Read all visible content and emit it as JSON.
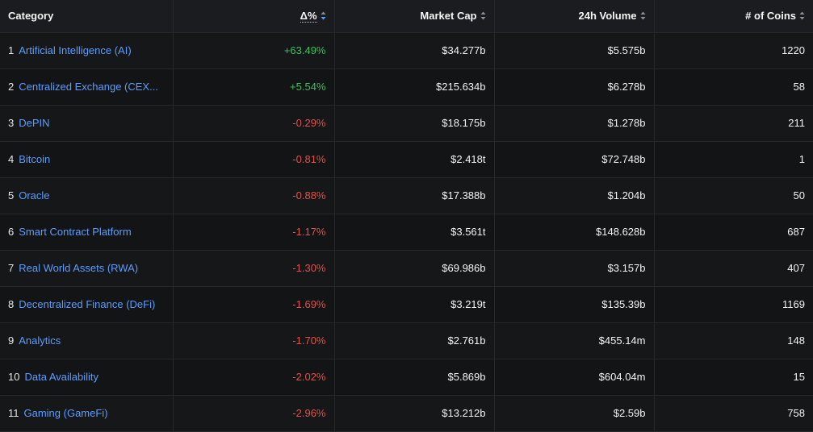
{
  "table": {
    "headers": {
      "category": "Category",
      "delta": "Δ%",
      "market_cap": "Market Cap",
      "volume": "24h Volume",
      "coins": "# of Coins"
    },
    "colors": {
      "positive": "#3fbf5f",
      "negative": "#e0524a",
      "link": "#5b9dff",
      "active_sort": "#5b9dff"
    },
    "rows": [
      {
        "rank": "1",
        "category": "Artificial Intelligence (AI)",
        "delta": "+63.49%",
        "trend": "up",
        "market_cap": "$34.277b",
        "volume": "$5.575b",
        "coins": "1220"
      },
      {
        "rank": "2",
        "category": "Centralized Exchange (CEX...",
        "delta": "+5.54%",
        "trend": "up",
        "market_cap": "$215.634b",
        "volume": "$6.278b",
        "coins": "58"
      },
      {
        "rank": "3",
        "category": "DePIN",
        "delta": "-0.29%",
        "trend": "down",
        "market_cap": "$18.175b",
        "volume": "$1.278b",
        "coins": "211"
      },
      {
        "rank": "4",
        "category": "Bitcoin",
        "delta": "-0.81%",
        "trend": "down",
        "market_cap": "$2.418t",
        "volume": "$72.748b",
        "coins": "1"
      },
      {
        "rank": "5",
        "category": "Oracle",
        "delta": "-0.88%",
        "trend": "down",
        "market_cap": "$17.388b",
        "volume": "$1.204b",
        "coins": "50"
      },
      {
        "rank": "6",
        "category": "Smart Contract Platform",
        "delta": "-1.17%",
        "trend": "down",
        "market_cap": "$3.561t",
        "volume": "$148.628b",
        "coins": "687"
      },
      {
        "rank": "7",
        "category": "Real World Assets (RWA)",
        "delta": "-1.30%",
        "trend": "down",
        "market_cap": "$69.986b",
        "volume": "$3.157b",
        "coins": "407"
      },
      {
        "rank": "8",
        "category": "Decentralized Finance (DeFi)",
        "delta": "-1.69%",
        "trend": "down",
        "market_cap": "$3.219t",
        "volume": "$135.39b",
        "coins": "1169"
      },
      {
        "rank": "9",
        "category": "Analytics",
        "delta": "-1.70%",
        "trend": "down",
        "market_cap": "$2.761b",
        "volume": "$455.14m",
        "coins": "148"
      },
      {
        "rank": "10",
        "category": "Data Availability",
        "delta": "-2.02%",
        "trend": "down",
        "market_cap": "$5.869b",
        "volume": "$604.04m",
        "coins": "15"
      },
      {
        "rank": "11",
        "category": "Gaming (GameFi)",
        "delta": "-2.96%",
        "trend": "down",
        "market_cap": "$13.212b",
        "volume": "$2.59b",
        "coins": "758"
      }
    ]
  }
}
